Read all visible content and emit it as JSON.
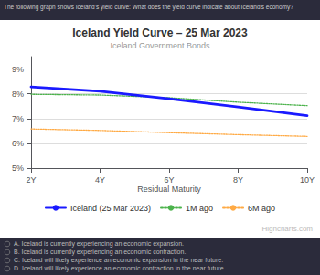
{
  "chart_data": {
    "type": "line",
    "title": "Iceland Yield Curve – 25 Mar 2023",
    "subtitle": "Iceland Government Bonds",
    "question": "The following graph shows Iceland's yield curve: What does the yield curve indicate about Iceland's economy?",
    "answers": [
      "A. Iceland is currently experiencing an economic expansion.",
      "B. Iceland is currently experiencing an economic contraction.",
      "C. Iceland will likely experience an economic expansion in the near future.",
      "D. Iceland will likely experience an economic contraction in the near future."
    ],
    "watermark": "Highcharts.com",
    "xlabel": "Residual Maturity",
    "x": [
      2,
      4,
      6,
      8,
      10
    ],
    "xlim": [
      2,
      10
    ],
    "xticks": [
      {
        "value": 2,
        "label": "2Y"
      },
      {
        "value": 4,
        "label": "4Y"
      },
      {
        "value": 6,
        "label": "6Y"
      },
      {
        "value": 8,
        "label": "8Y"
      },
      {
        "value": 10,
        "label": "10Y"
      }
    ],
    "ylim": [
      5.0,
      9.5
    ],
    "yticks": [
      {
        "value": 5,
        "label": "5%"
      },
      {
        "value": 6,
        "label": "6%"
      },
      {
        "value": 7,
        "label": "7%"
      },
      {
        "value": 8,
        "label": "8%"
      },
      {
        "value": 9,
        "label": "9%"
      }
    ],
    "grid": true,
    "legend": "bottom",
    "series": [
      {
        "name": "Iceland (25 Mar 2023)",
        "color": "#1a1aff",
        "line_style": "solid",
        "values": [
          8.28,
          8.1,
          7.8,
          7.47,
          7.12
        ]
      },
      {
        "name": "1M ago",
        "color": "#4db34d",
        "line_style": "dotted",
        "values": [
          7.98,
          7.95,
          7.84,
          7.66,
          7.52
        ]
      },
      {
        "name": "6M ago",
        "color": "#ffaa44",
        "line_style": "dotted",
        "values": [
          6.58,
          6.52,
          6.43,
          6.35,
          6.28
        ]
      }
    ]
  }
}
